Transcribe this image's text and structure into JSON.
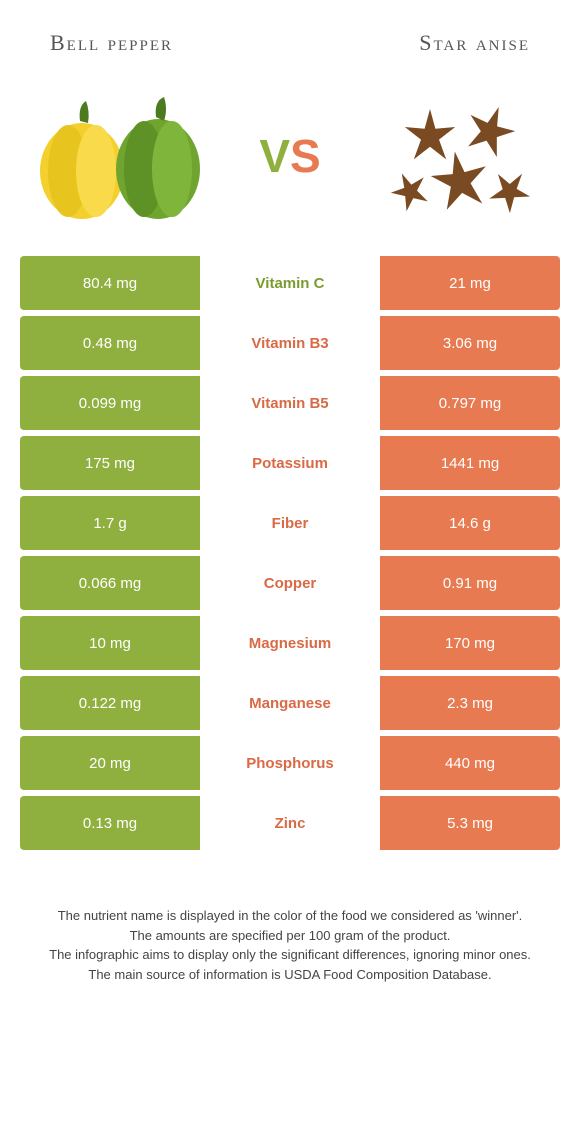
{
  "header": {
    "left_title": "Bell pepper",
    "right_title": "Star anise"
  },
  "vs": {
    "v": "V",
    "s": "S"
  },
  "colors": {
    "green": "#8fb03e",
    "orange": "#e77a51",
    "green_text": "#7a9c2e",
    "orange_text": "#d96a45"
  },
  "rows": [
    {
      "left": "80.4 mg",
      "name": "Vitamin C",
      "right": "21 mg",
      "winner": "left"
    },
    {
      "left": "0.48 mg",
      "name": "Vitamin B3",
      "right": "3.06 mg",
      "winner": "right"
    },
    {
      "left": "0.099 mg",
      "name": "Vitamin B5",
      "right": "0.797 mg",
      "winner": "right"
    },
    {
      "left": "175 mg",
      "name": "Potassium",
      "right": "1441 mg",
      "winner": "right"
    },
    {
      "left": "1.7 g",
      "name": "Fiber",
      "right": "14.6 g",
      "winner": "right"
    },
    {
      "left": "0.066 mg",
      "name": "Copper",
      "right": "0.91 mg",
      "winner": "right"
    },
    {
      "left": "10 mg",
      "name": "Magnesium",
      "right": "170 mg",
      "winner": "right"
    },
    {
      "left": "0.122 mg",
      "name": "Manganese",
      "right": "2.3 mg",
      "winner": "right"
    },
    {
      "left": "20 mg",
      "name": "Phosphorus",
      "right": "440 mg",
      "winner": "right"
    },
    {
      "left": "0.13 mg",
      "name": "Zinc",
      "right": "5.3 mg",
      "winner": "right"
    }
  ],
  "footer": {
    "l1": "The nutrient name is displayed in the color of the food we considered as 'winner'.",
    "l2": "The amounts are specified per 100 gram of the product.",
    "l3": "The infographic aims to display only the significant differences, ignoring minor ones.",
    "l4": "The main source of information is USDA Food Composition Database."
  }
}
